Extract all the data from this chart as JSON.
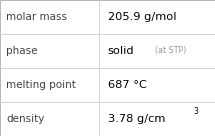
{
  "rows": [
    {
      "label": "molar mass",
      "value": "205.9 g/mol",
      "superscript": null,
      "extra": null
    },
    {
      "label": "phase",
      "value": "solid",
      "superscript": null,
      "extra": "(at STP)"
    },
    {
      "label": "melting point",
      "value": "687 °C",
      "superscript": null,
      "extra": null
    },
    {
      "label": "density",
      "value": "3.78 g/cm",
      "superscript": "3",
      "extra": null
    }
  ],
  "background_color": "#ffffff",
  "border_color": "#aaaaaa",
  "text_color_label": "#404040",
  "text_color_value": "#000000",
  "text_color_extra": "#999999",
  "font_size_label": 7.5,
  "font_size_value": 8.2,
  "font_size_extra": 5.8,
  "font_size_super": 5.5,
  "divider_color": "#cccccc",
  "col_split": 0.46
}
